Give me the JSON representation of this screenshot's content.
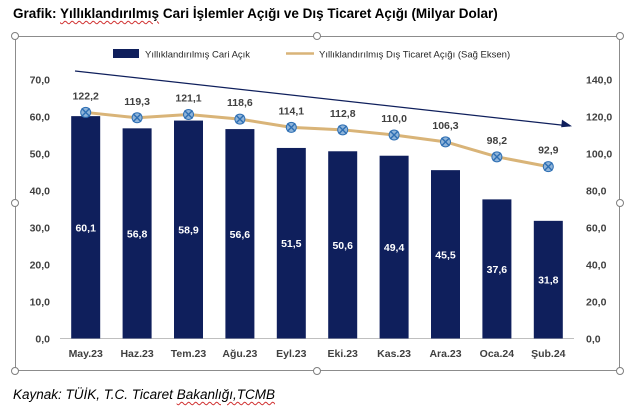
{
  "title": {
    "prefix": "Grafik: ",
    "underlined": "Yıllıklandırılmış",
    "rest": " Cari İşlemler Açığı ve Dış Ticaret Açığı (Milyar Dolar)"
  },
  "source": {
    "prefix": "Kaynak: TÜİK, T.C. Ticaret ",
    "underlined": "Bakanlığı,TCMB"
  },
  "colors": {
    "bar": "#0f1f5c",
    "line": "#d9b478",
    "marker_fill": "#8fb4d9",
    "marker_stroke": "#2e6fb3",
    "trend_arrow": "#0f1f5c"
  },
  "chart_data": {
    "type": "bar+line",
    "categories": [
      "May.23",
      "Haz.23",
      "Tem.23",
      "Ağu.23",
      "Eyl.23",
      "Eki.23",
      "Kas.23",
      "Ara.23",
      "Oca.24",
      "Şub.24"
    ],
    "series": [
      {
        "name": "Yıllıklandırılmış Cari Açık",
        "type": "bar",
        "axis": "left",
        "values": [
          60.1,
          56.8,
          58.9,
          56.6,
          51.5,
          50.6,
          49.4,
          45.5,
          37.6,
          31.8
        ],
        "labels": [
          "60,1",
          "56,8",
          "58,9",
          "56,6",
          "51,5",
          "50,6",
          "49,4",
          "45,5",
          "37,6",
          "31,8"
        ]
      },
      {
        "name": "Yıllıklandırılmış Dış Ticaret Açığı (Sağ Eksen)",
        "type": "line",
        "axis": "right",
        "values": [
          122.2,
          119.3,
          121.1,
          118.6,
          114.1,
          112.8,
          110.0,
          106.3,
          98.2,
          92.9
        ],
        "labels": [
          "122,2",
          "119,3",
          "121,1",
          "118,6",
          "114,1",
          "112,8",
          "110,0",
          "106,3",
          "98,2",
          "92,9"
        ]
      }
    ],
    "y_left": {
      "min": 0,
      "max": 70,
      "ticks": [
        "0,0",
        "10,0",
        "20,0",
        "30,0",
        "40,0",
        "50,0",
        "60,0",
        "70,0"
      ]
    },
    "y_right": {
      "min": 0,
      "max": 140,
      "ticks": [
        "0,0",
        "20,0",
        "40,0",
        "60,0",
        "80,0",
        "100,0",
        "120,0",
        "140,0"
      ]
    },
    "legend_position": "top",
    "grid": false
  }
}
